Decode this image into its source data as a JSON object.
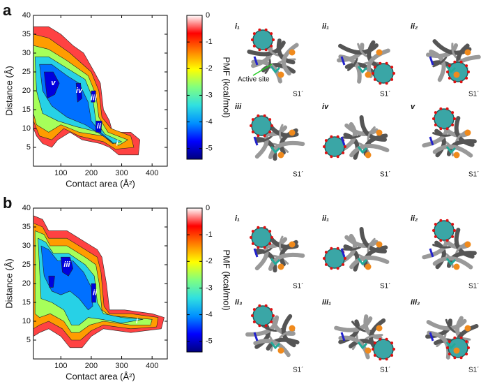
{
  "chart_data": [
    {
      "type": "contour",
      "x_label": "Contact area (Å²)",
      "y_label": "Distance (Å)",
      "colorbar_label": "PMF (kcal/mol)",
      "xlim": [
        10,
        450
      ],
      "xticks": [
        100,
        200,
        300,
        400
      ],
      "ylim": [
        0,
        40
      ],
      "yticks": [
        5,
        10,
        15,
        20,
        25,
        30,
        35,
        40
      ],
      "clim": [
        -5.4,
        0
      ],
      "cticks": [
        0,
        -1,
        -2,
        -3,
        -4,
        -5
      ],
      "colormap": [
        "#00007f",
        "#0000ff",
        "#0090ff",
        "#30e0e0",
        "#80ff80",
        "#ffff00",
        "#ff8000",
        "#ff0000",
        "#ffffff"
      ],
      "contours": [
        {
          "level": -0.5,
          "polygons": [
            [
              [
                10,
                37
              ],
              [
                60,
                37
              ],
              [
                100,
                35
              ],
              [
                140,
                32
              ],
              [
                175,
                30
              ],
              [
                210,
                25
              ],
              [
                230,
                22
              ],
              [
                240,
                15
              ],
              [
                260,
                12
              ],
              [
                270,
                9
              ],
              [
                330,
                9
              ],
              [
                360,
                7
              ],
              [
                355,
                3
              ],
              [
                290,
                3
              ],
              [
                260,
                5
              ],
              [
                230,
                6
              ],
              [
                170,
                7
              ],
              [
                130,
                9
              ],
              [
                90,
                7
              ],
              [
                70,
                5
              ],
              [
                40,
                6
              ],
              [
                20,
                8
              ],
              [
                10,
                10
              ]
            ]
          ]
        },
        {
          "level": -1.5,
          "polygons": [
            [
              [
                10,
                35
              ],
              [
                60,
                34
              ],
              [
                130,
                30
              ],
              [
                200,
                25
              ],
              [
                225,
                20
              ],
              [
                235,
                13
              ],
              [
                265,
                10
              ],
              [
                330,
                8
              ],
              [
                340,
                5
              ],
              [
                280,
                4.5
              ],
              [
                240,
                6.5
              ],
              [
                160,
                8
              ],
              [
                110,
                10
              ],
              [
                70,
                7
              ],
              [
                30,
                8
              ],
              [
                10,
                12
              ]
            ]
          ]
        },
        {
          "level": -2.5,
          "polygons": [
            [
              [
                10,
                32
              ],
              [
                60,
                31
              ],
              [
                120,
                28
              ],
              [
                190,
                24
              ],
              [
                215,
                19
              ],
              [
                225,
                13
              ],
              [
                255,
                9
              ],
              [
                320,
                7
              ],
              [
                290,
                5.5
              ],
              [
                240,
                8
              ],
              [
                160,
                9
              ],
              [
                100,
                11
              ],
              [
                60,
                9
              ],
              [
                20,
                11
              ],
              [
                10,
                14
              ]
            ]
          ]
        },
        {
          "level": -3.5,
          "polygons": [
            [
              [
                15,
                29
              ],
              [
                60,
                29
              ],
              [
                120,
                26
              ],
              [
                180,
                23
              ],
              [
                205,
                18
              ],
              [
                215,
                12
              ],
              [
                245,
                8.5
              ],
              [
                300,
                6.5
              ],
              [
                270,
                6
              ],
              [
                225,
                9
              ],
              [
                150,
                10.5
              ],
              [
                90,
                12
              ],
              [
                40,
                14
              ],
              [
                20,
                20
              ]
            ]
          ]
        },
        {
          "level": -4.2,
          "polygons": [
            [
              [
                30,
                27
              ],
              [
                70,
                27
              ],
              [
                120,
                24
              ],
              [
                160,
                22
              ],
              [
                190,
                17
              ],
              [
                200,
                12
              ],
              [
                230,
                9
              ],
              [
                275,
                6
              ],
              [
                230,
                8.5
              ],
              [
                180,
                11
              ],
              [
                120,
                13
              ],
              [
                70,
                16
              ],
              [
                40,
                20
              ]
            ]
          ]
        },
        {
          "level": -4.9,
          "polygons": [
            [
              [
                45,
                25
              ],
              [
                75,
                25
              ],
              [
                95,
                22
              ],
              [
                80,
                19
              ],
              [
                55,
                18
              ]
            ],
            [
              [
                150,
                22
              ],
              [
                165,
                22
              ],
              [
                170,
                18
              ],
              [
                155,
                17
              ]
            ],
            [
              [
                200,
                20
              ],
              [
                215,
                20
              ],
              [
                212,
                17
              ],
              [
                200,
                17
              ]
            ],
            [
              [
                215,
                12
              ],
              [
                235,
                12
              ],
              [
                232,
                9
              ],
              [
                215,
                9
              ]
            ]
          ]
        }
      ],
      "annotations": [
        {
          "text": "v",
          "x": 75,
          "y": 22
        },
        {
          "text": "iv",
          "x": 160,
          "y": 20
        },
        {
          "text": "iii",
          "x": 208,
          "y": 18
        },
        {
          "text": "ii",
          "x": 225,
          "y": 10.5
        },
        {
          "text": "i",
          "x": 285,
          "y": 6
        }
      ]
    },
    {
      "type": "contour",
      "x_label": "Contact area (Å²)",
      "y_label": "Distance (Å)",
      "colorbar_label": "PMF (kcal/mol)",
      "xlim": [
        10,
        450
      ],
      "xticks": [
        100,
        200,
        300,
        400
      ],
      "ylim": [
        0,
        40
      ],
      "yticks": [
        5,
        10,
        15,
        20,
        25,
        30,
        35,
        40
      ],
      "clim": [
        -5.4,
        0
      ],
      "cticks": [
        0,
        -1,
        -2,
        -3,
        -4,
        -5
      ],
      "colormap": [
        "#00007f",
        "#0000ff",
        "#0090ff",
        "#30e0e0",
        "#80ff80",
        "#ffff00",
        "#ff8000",
        "#ff0000",
        "#ffffff"
      ],
      "contours": [
        {
          "level": -0.5,
          "polygons": [
            [
              [
                10,
                38
              ],
              [
                40,
                37
              ],
              [
                60,
                34
              ],
              [
                120,
                34
              ],
              [
                180,
                31
              ],
              [
                220,
                29
              ],
              [
                235,
                27
              ],
              [
                250,
                20
              ],
              [
                260,
                13
              ],
              [
                310,
                13
              ],
              [
                400,
                12
              ],
              [
                440,
                11
              ],
              [
                430,
                8
              ],
              [
                330,
                7
              ],
              [
                240,
                8
              ],
              [
                200,
                6
              ],
              [
                170,
                3
              ],
              [
                130,
                3
              ],
              [
                100,
                6
              ],
              [
                60,
                8
              ],
              [
                30,
                7
              ],
              [
                10,
                6
              ]
            ]
          ]
        },
        {
          "level": -1.5,
          "polygons": [
            [
              [
                10,
                36
              ],
              [
                40,
                35
              ],
              [
                60,
                32
              ],
              [
                120,
                32
              ],
              [
                180,
                29
              ],
              [
                220,
                27
              ],
              [
                232,
                23
              ],
              [
                242,
                14
              ],
              [
                260,
                12
              ],
              [
                330,
                12
              ],
              [
                420,
                11
              ],
              [
                415,
                8.5
              ],
              [
                330,
                8
              ],
              [
                240,
                9
              ],
              [
                200,
                7.5
              ],
              [
                165,
                5
              ],
              [
                135,
                5
              ],
              [
                105,
                8
              ],
              [
                60,
                10
              ],
              [
                30,
                9
              ],
              [
                10,
                8
              ]
            ]
          ]
        },
        {
          "level": -2.5,
          "polygons": [
            [
              [
                15,
                34
              ],
              [
                45,
                33
              ],
              [
                65,
                30
              ],
              [
                120,
                30
              ],
              [
                180,
                27
              ],
              [
                215,
                25
              ],
              [
                226,
                20
              ],
              [
                235,
                13
              ],
              [
                260,
                11.5
              ],
              [
                330,
                11
              ],
              [
                400,
                10.5
              ],
              [
                395,
                9
              ],
              [
                330,
                9
              ],
              [
                240,
                10
              ],
              [
                195,
                9
              ],
              [
                160,
                7
              ],
              [
                135,
                7
              ],
              [
                110,
                10
              ],
              [
                65,
                12
              ],
              [
                30,
                11
              ],
              [
                15,
                12
              ]
            ]
          ]
        },
        {
          "level": -3.5,
          "polygons": [
            [
              [
                25,
                32
              ],
              [
                50,
                31
              ],
              [
                75,
                28
              ],
              [
                125,
                28
              ],
              [
                180,
                25
              ],
              [
                210,
                22
              ],
              [
                220,
                15
              ],
              [
                240,
                12
              ],
              [
                300,
                11
              ],
              [
                370,
                10.5
              ],
              [
                300,
                9.5
              ],
              [
                235,
                10.5
              ],
              [
                190,
                11
              ],
              [
                160,
                9
              ],
              [
                135,
                9
              ],
              [
                110,
                13
              ],
              [
                70,
                15
              ],
              [
                35,
                16
              ]
            ]
          ]
        },
        {
          "level": -4.2,
          "polygons": [
            [
              [
                35,
                30
              ],
              [
                60,
                29
              ],
              [
                90,
                26
              ],
              [
                140,
                26
              ],
              [
                175,
                23
              ],
              [
                200,
                19
              ],
              [
                205,
                14
              ],
              [
                190,
                13
              ],
              [
                160,
                16
              ],
              [
                130,
                18
              ],
              [
                100,
                17
              ],
              [
                70,
                18
              ],
              [
                45,
                22
              ]
            ]
          ]
        },
        {
          "level": -4.9,
          "polygons": [
            [
              [
                100,
                27
              ],
              [
                130,
                27
              ],
              [
                140,
                24
              ],
              [
                125,
                22
              ],
              [
                105,
                23
              ]
            ],
            [
              [
                200,
                20
              ],
              [
                215,
                20
              ],
              [
                215,
                15
              ],
              [
                202,
                15
              ]
            ],
            [
              [
                60,
                22
              ],
              [
                80,
                22
              ],
              [
                75,
                19
              ],
              [
                62,
                19
              ]
            ]
          ]
        }
      ],
      "annotations": [
        {
          "text": "iii",
          "x": 120,
          "y": 25
        },
        {
          "text": "ii",
          "x": 212,
          "y": 17.5
        },
        {
          "text": "i",
          "x": 350,
          "y": 10
        }
      ]
    }
  ],
  "panels": [
    {
      "letter": "a",
      "structures": [
        {
          "label": "i₁",
          "site": "S1´",
          "annotation": "Active site"
        },
        {
          "label": "ii₁",
          "site": "S1´"
        },
        {
          "label": "ii₂",
          "site": "S1´"
        },
        {
          "label": "iii",
          "site": "S1´"
        },
        {
          "label": "iv",
          "site": "S1´"
        },
        {
          "label": "v",
          "site": "S1´"
        }
      ]
    },
    {
      "letter": "b",
      "structures": [
        {
          "label": "i₁",
          "site": "S1´"
        },
        {
          "label": "ii₁",
          "site": "S1´"
        },
        {
          "label": "ii₂",
          "site": "S1´"
        },
        {
          "label": "ii₃",
          "site": "S1´"
        },
        {
          "label": "iii₁",
          "site": "S1´"
        },
        {
          "label": "iii₂",
          "site": "S1´"
        }
      ]
    }
  ]
}
